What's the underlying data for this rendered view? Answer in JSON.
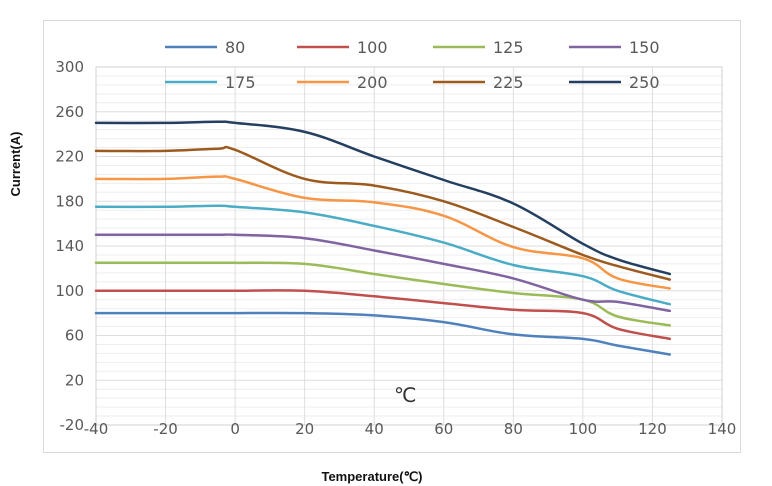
{
  "chart_data": {
    "type": "line",
    "title": "",
    "xlabel": "Temperature(℃)",
    "ylabel": "Current(A)",
    "annotation": "℃",
    "xlim": [
      -40,
      140
    ],
    "ylim": [
      -20,
      300
    ],
    "xticks": [
      "-40",
      "-20",
      "0",
      "20",
      "40",
      "60",
      "80",
      "100",
      "120",
      "140"
    ],
    "yticks": [
      "-20",
      "20",
      "60",
      "100",
      "140",
      "180",
      "220",
      "260",
      "300"
    ],
    "xtick_values": [
      -40,
      -20,
      0,
      20,
      40,
      60,
      80,
      100,
      120,
      140
    ],
    "ytick_values": [
      -20,
      20,
      60,
      100,
      140,
      180,
      220,
      260,
      300
    ],
    "grid": true,
    "legend_position": "top",
    "x": [
      -40,
      -20,
      -5,
      0,
      20,
      40,
      60,
      80,
      100,
      110,
      125
    ],
    "series": [
      {
        "name": "80",
        "color": "#4f81bd",
        "values": [
          80,
          80,
          80,
          80,
          80,
          78,
          72,
          61,
          57,
          51,
          43
        ]
      },
      {
        "name": "100",
        "color": "#c0504d",
        "values": [
          100,
          100,
          100,
          100,
          100,
          95,
          89,
          83,
          80,
          66,
          57
        ]
      },
      {
        "name": "125",
        "color": "#9bbb59",
        "values": [
          125,
          125,
          125,
          125,
          124,
          115,
          106,
          98,
          92,
          77,
          69
        ]
      },
      {
        "name": "150",
        "color": "#8064a2",
        "values": [
          150,
          150,
          150,
          150,
          147,
          136,
          124,
          111,
          92,
          90,
          82
        ]
      },
      {
        "name": "175",
        "color": "#4bacc6",
        "values": [
          175,
          175,
          176,
          175,
          170,
          158,
          143,
          123,
          113,
          100,
          88
        ]
      },
      {
        "name": "200",
        "color": "#f79646",
        "values": [
          200,
          200,
          202,
          200,
          183,
          179,
          167,
          139,
          129,
          111,
          102
        ]
      },
      {
        "name": "225",
        "color": "#9c5a1e",
        "values": [
          225,
          225,
          227,
          226,
          200,
          194,
          180,
          157,
          132,
          122,
          110
        ]
      },
      {
        "name": "250",
        "color": "#243f60",
        "values": [
          250,
          250,
          251,
          250,
          242,
          220,
          199,
          178,
          142,
          128,
          115
        ]
      }
    ]
  }
}
